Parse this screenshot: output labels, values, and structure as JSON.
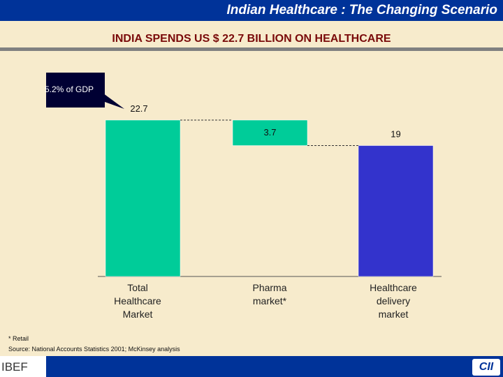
{
  "header": {
    "title": "Indian Healthcare : The Changing Scenario"
  },
  "slide_title": "INDIA SPENDS US $ 22.7 BILLION ON HEALTHCARE",
  "callout": "5.2% of GDP",
  "chart_data": {
    "type": "bar",
    "subtype": "waterfall",
    "categories": [
      "Total Healthcare Market",
      "Pharma market*",
      "Healthcare delivery market"
    ],
    "values": [
      22.7,
      3.7,
      19
    ],
    "labels": [
      "22.7",
      "3.7",
      "19"
    ],
    "colors": [
      "#00cc99",
      "#00cc99",
      "#3333cc"
    ],
    "ylim": [
      0,
      22.7
    ],
    "grid": false
  },
  "categories_lines": [
    [
      "Total",
      "Healthcare",
      "Market"
    ],
    [
      "Pharma",
      "market*"
    ],
    [
      "Healthcare",
      "delivery",
      "market"
    ]
  ],
  "footnote": "* Retail",
  "source": "Source: National Accounts Statistics 2001; McKinsey analysis",
  "logos": {
    "left": "IBEF",
    "right": "CII"
  }
}
